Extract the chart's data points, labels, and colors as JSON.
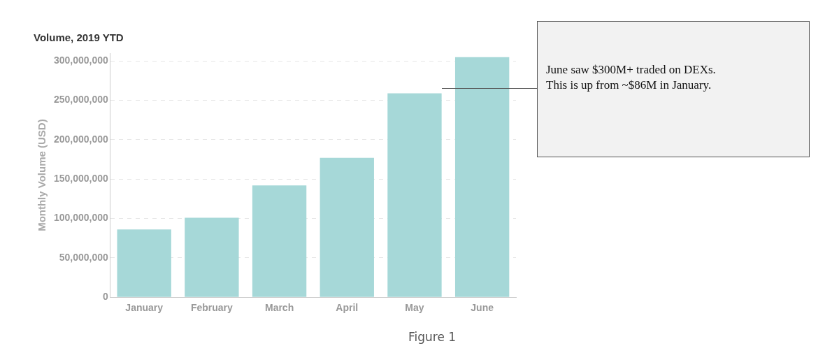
{
  "chart_data": {
    "type": "bar",
    "title": "Volume, 2019 YTD",
    "ylabel": "Monthly Volume (USD)",
    "categories": [
      "January",
      "February",
      "March",
      "April",
      "May",
      "June"
    ],
    "values": [
      86000000,
      101000000,
      142000000,
      177000000,
      259000000,
      305000000
    ],
    "color": "#a6d8d8",
    "ylim": [
      0,
      310000000
    ],
    "yticks": [
      0,
      {
        "value": 50000000,
        "label": "50,000,000"
      },
      {
        "value": 100000000,
        "label": "100,000,000"
      },
      {
        "value": 150000000,
        "label": "150,000,000"
      },
      {
        "value": 200000000,
        "label": "200,000,000"
      },
      {
        "value": 250000000,
        "label": "250,000,000"
      },
      {
        "value": 300000000,
        "label": "300,000,000"
      }
    ],
    "grid": "y",
    "legend": false,
    "annotations": [
      "June saw $300M+ traded on DEXs.",
      "This is up from ~$86M in January.",
      "Figure 1"
    ]
  }
}
